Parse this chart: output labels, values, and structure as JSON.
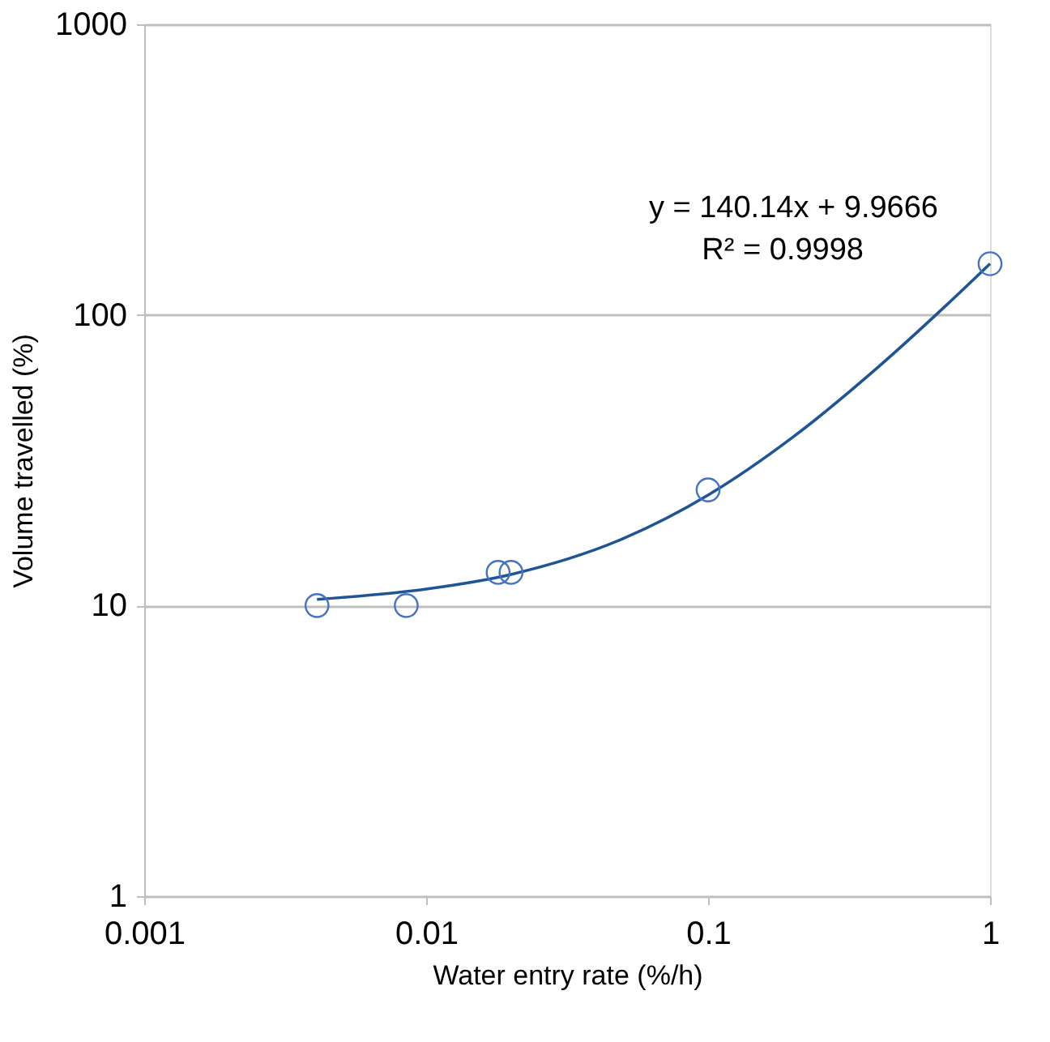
{
  "chart_data": {
    "type": "scatter",
    "xlabel": "Water entry rate (%/h)",
    "ylabel": "Volume travelled (%)",
    "log": "xy",
    "grid": "y",
    "marker": "circle",
    "xlim": [
      0.001,
      1
    ],
    "xticks": [
      0.001,
      0.01,
      0.1,
      1
    ],
    "ylim": [
      1,
      1000
    ],
    "yticks": [
      1,
      10,
      100,
      1000
    ],
    "series": [
      {
        "color": "#4472c4",
        "x": [
          0.0041,
          0.0085,
          0.018,
          0.02,
          0.1,
          1
        ],
        "values": [
          10,
          10,
          13,
          13,
          25,
          150
        ]
      },
      {
        "type": "line",
        "color": "#1f5596",
        "marker": "none",
        "line_style": "solid",
        "x": [
          0.0041,
          0.01,
          0.02,
          0.05,
          0.1,
          0.2,
          0.4,
          0.7,
          1
        ],
        "values": [
          10.5,
          11.4,
          12.8,
          17.0,
          24.0,
          38.0,
          66.0,
          108,
          150
        ]
      }
    ],
    "annotations": [
      "y = 140.14x + 9.9666",
      "R² = 0.9998"
    ]
  }
}
